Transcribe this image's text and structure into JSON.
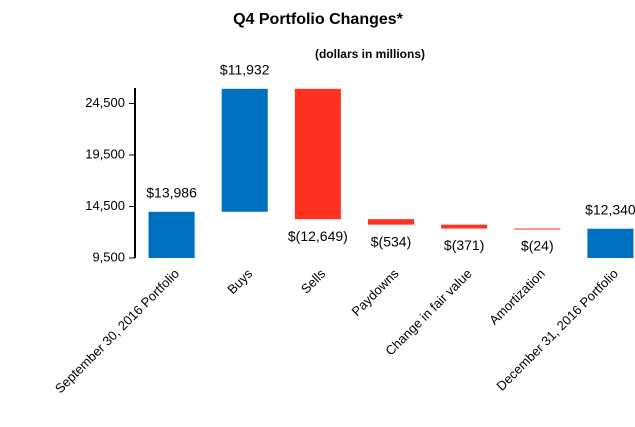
{
  "chart_data": {
    "type": "waterfall",
    "title": "Q4 Portfolio Changes*",
    "subtitle": "(dollars in millions)",
    "categories": [
      "September 30, 2016 Portfolio",
      "Buys",
      "Sells",
      "Paydowns",
      "Change in fair value",
      "Amortization",
      "December 31, 2016 Portfolio"
    ],
    "values": [
      13986,
      11932,
      -12649,
      -534,
      -371,
      -24,
      12340
    ],
    "value_labels": [
      "$13,986",
      "$11,932",
      "$(12,649)",
      "$(534)",
      "$(371)",
      "$(24)",
      "$12,340"
    ],
    "color_positive": "#0070c0",
    "color_negative": "#ff3121",
    "ylim": [
      9500,
      26000
    ],
    "yticks": [
      {
        "value": 9500,
        "label": "9,500"
      },
      {
        "value": 14500,
        "label": "14,500"
      },
      {
        "value": 19500,
        "label": "19,500"
      },
      {
        "value": 24500,
        "label": "24,500"
      }
    ]
  }
}
